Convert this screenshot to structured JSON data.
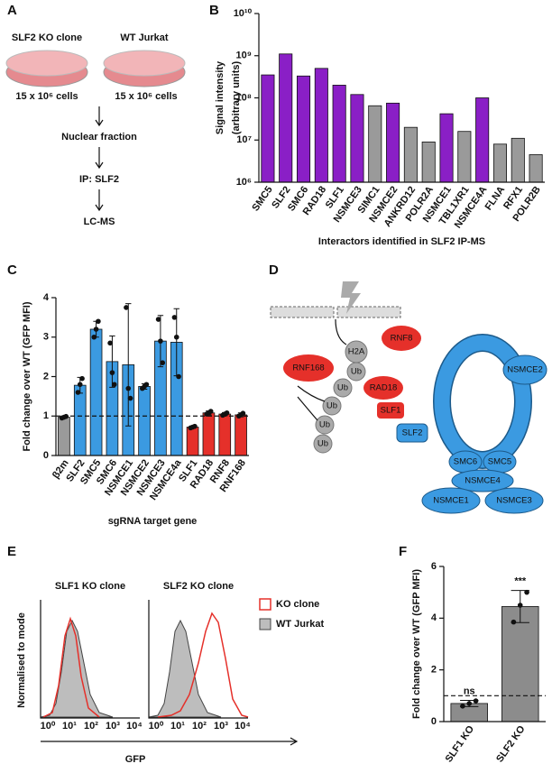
{
  "panel_labels": [
    "A",
    "B",
    "C",
    "D",
    "E",
    "F"
  ],
  "panel_a": {
    "samples": [
      "SLF2 KO clone",
      "WT Jurkat"
    ],
    "cells": [
      "15 x 10⁶ cells",
      "15 x 10⁶ cells"
    ],
    "steps": [
      "Nuclear fraction",
      "IP: SLF2",
      "LC-MS"
    ]
  },
  "panel_d": {
    "nodes": [
      "H2A",
      "Ub",
      "Ub",
      "Ub",
      "Ub",
      "Ub",
      "RNF8",
      "RNF168",
      "RAD18",
      "SLF1",
      "SLF2",
      "NSMCE2",
      "SMC6",
      "SMC5",
      "NSMCE4",
      "NSMCE1",
      "NSMCE3"
    ]
  },
  "panel_e": {
    "titles": [
      "SLF1 KO clone",
      "SLF2 KO clone"
    ],
    "y_label": "Normalised to mode",
    "x_label": "GFP",
    "legend": [
      "KO clone",
      "WT Jurkat"
    ],
    "x_tick_labels": [
      "10⁰",
      "10¹",
      "10²",
      "10³",
      "10⁴"
    ]
  },
  "chart_data": [
    {
      "type": "bar",
      "log": true,
      "categories": [
        "SMC5",
        "SLF2",
        "SMC6",
        "RAD18",
        "SLF1",
        "NSMCE3",
        "SIMC1",
        "NSMCE2",
        "ANKRD12",
        "POLR2A",
        "NSMCE1",
        "TBL1XR1",
        "NSMCE4A",
        "FLNA",
        "RFX1",
        "POLR2B"
      ],
      "values": [
        350000000,
        1100000000,
        330000000,
        500000000,
        200000000,
        120000000,
        65000000,
        75000000,
        20000000,
        9000000,
        42000000,
        16000000,
        100000000,
        8000000,
        11000000,
        4500000
      ],
      "colors": [
        "#8a1fc6",
        "#8a1fc6",
        "#8a1fc6",
        "#8a1fc6",
        "#8a1fc6",
        "#8a1fc6",
        "#9a9a9a",
        "#8a1fc6",
        "#9a9a9a",
        "#9a9a9a",
        "#8a1fc6",
        "#9a9a9a",
        "#8a1fc6",
        "#9a9a9a",
        "#9a9a9a",
        "#9a9a9a"
      ],
      "ylim": [
        1000000,
        10000000000
      ],
      "yticks": [
        {
          "value": 1000000,
          "label": "10⁶"
        },
        {
          "value": 10000000,
          "label": "10⁷"
        },
        {
          "value": 100000000,
          "label": "10⁸"
        },
        {
          "value": 1000000000,
          "label": "10⁹"
        },
        {
          "value": 10000000000,
          "label": "10¹⁰"
        }
      ],
      "y_label": [
        "Signal intensity",
        "(arbitrary units)"
      ],
      "x_label": "Interactors identified in SLF2 IP-MS"
    },
    {
      "type": "bar",
      "categories": [
        "β2m",
        "SLF2",
        "SMC5",
        "SMC6",
        "NSMCE1",
        "NSMCE2",
        "NSMCE3",
        "NSMCE4a",
        "SLF1",
        "RAD18",
        "RNF8",
        "RNF168"
      ],
      "values": [
        0.97,
        1.78,
        3.2,
        2.38,
        2.3,
        1.75,
        2.9,
        2.87,
        0.72,
        1.08,
        1.05,
        1.03
      ],
      "errors": [
        0.03,
        0.2,
        0.2,
        0.65,
        1.55,
        0.07,
        0.65,
        0.85,
        0.03,
        0.05,
        0.04,
        0.05
      ],
      "points": [
        [
          0.95,
          0.97,
          0.99
        ],
        [
          1.6,
          1.8,
          1.95
        ],
        [
          3.0,
          3.2,
          3.4
        ],
        [
          2.85,
          2.1,
          1.8
        ],
        [
          3.75,
          1.7,
          1.45
        ],
        [
          1.7,
          1.75,
          1.8
        ],
        [
          3.45,
          2.9,
          2.35
        ],
        [
          3.5,
          3.0,
          2.0
        ],
        [
          0.7,
          0.72,
          0.74
        ],
        [
          1.05,
          1.08,
          1.12
        ],
        [
          1.02,
          1.05,
          1.08
        ],
        [
          1.0,
          1.03,
          1.07
        ]
      ],
      "colors": [
        "#9a9a9a",
        "#3b9ae1",
        "#3b9ae1",
        "#3b9ae1",
        "#3b9ae1",
        "#3b9ae1",
        "#3b9ae1",
        "#3b9ae1",
        "#e5302a",
        "#e5302a",
        "#e5302a",
        "#e5302a"
      ],
      "reference_line": 1,
      "ylim": [
        0,
        4
      ],
      "yticks": [
        0,
        1,
        2,
        3,
        4
      ],
      "y_label": "Fold change over WT (GFP MFI)",
      "x_label": "sgRNA target gene"
    },
    {
      "type": "bar",
      "categories": [
        "SLF1 KO",
        "SLF2 KO"
      ],
      "values": [
        0.7,
        4.45
      ],
      "errors": [
        0.12,
        0.62
      ],
      "points": [
        [
          0.6,
          0.7,
          0.8
        ],
        [
          3.85,
          4.5,
          5.0
        ]
      ],
      "annotations": [
        "ns",
        "***"
      ],
      "color": "#8c8c8c",
      "reference_line": 1,
      "ylim": [
        0,
        6
      ],
      "yticks": [
        0,
        2,
        4,
        6
      ],
      "y_label": "Fold change over WT (GFP MFI)"
    }
  ]
}
